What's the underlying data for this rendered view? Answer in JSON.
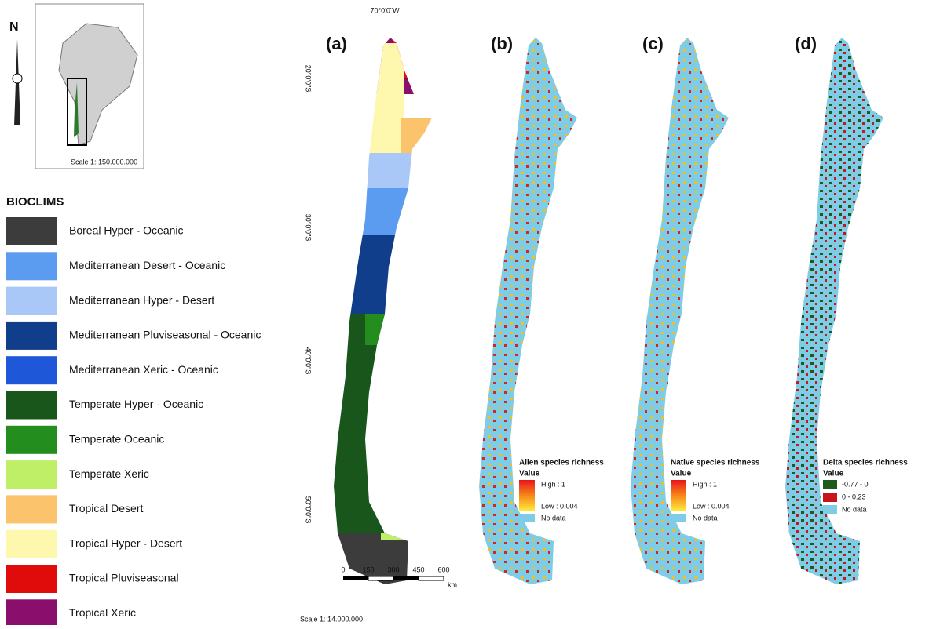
{
  "inset": {
    "north": "N",
    "scale": "Scale 1: 150.000.000"
  },
  "legend": {
    "title": "BIOCLIMS",
    "items": [
      {
        "label": "Boreal Hyper - Oceanic",
        "color": "#3c3c3c"
      },
      {
        "label": "Mediterranean Desert - Oceanic",
        "color": "#5b9bf0"
      },
      {
        "label": "Mediterranean Hyper - Desert",
        "color": "#a9c8f7"
      },
      {
        "label": "Mediterranean Pluviseasonal - Oceanic",
        "color": "#103e8a"
      },
      {
        "label": "Mediterranean Xeric - Oceanic",
        "color": "#1f57d9"
      },
      {
        "label": "Temperate Hyper - Oceanic",
        "color": "#18561b"
      },
      {
        "label": "Temperate Oceanic",
        "color": "#238e1d"
      },
      {
        "label": "Temperate Xeric",
        "color": "#bfef66"
      },
      {
        "label": "Tropical Desert",
        "color": "#fbc36c"
      },
      {
        "label": "Tropical Hyper - Desert",
        "color": "#fdf8ae"
      },
      {
        "label": "Tropical Pluviseasonal",
        "color": "#e00c0c"
      },
      {
        "label": "Tropical Xeric",
        "color": "#8a0f6c"
      }
    ]
  },
  "map": {
    "longitude": "70°0'0\"W",
    "latitudes": [
      "20°0'0\"S",
      "30°0'0\"S",
      "40°0'0\"S",
      "50°0'0\"S"
    ],
    "scale_bar": [
      "0",
      "150",
      "300",
      "450",
      "600"
    ],
    "scale_unit": "km",
    "scale": "Scale 1: 14.000.000"
  },
  "panels": [
    {
      "label": "(a)"
    },
    {
      "label": "(b)",
      "legend_title": "Alien species richness",
      "value": "Value",
      "entries": [
        "High : 1",
        "Low : 0.004",
        "No data"
      ]
    },
    {
      "label": "(c)",
      "legend_title": "Native species richness",
      "value": "Value",
      "entries": [
        "High : 1",
        "Low : 0.004",
        "No data"
      ]
    },
    {
      "label": "(d)",
      "legend_title": "Delta species richness",
      "value": "Value",
      "entries": [
        "-0.77 - 0",
        "0 - 0.23",
        "No data"
      ]
    }
  ]
}
